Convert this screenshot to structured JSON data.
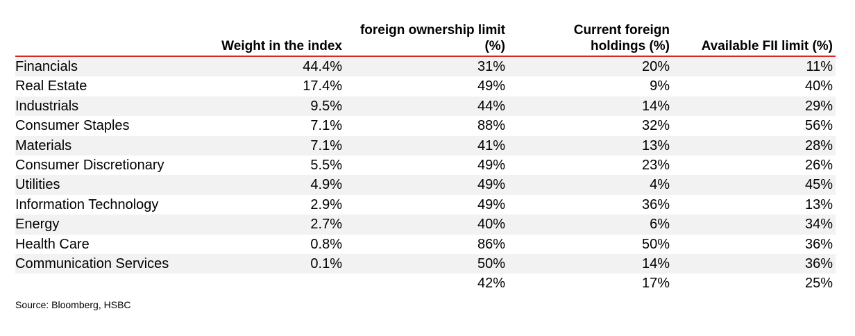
{
  "table": {
    "headers": {
      "weight": "Weight in the index",
      "fol_line1": "foreign ownership limit",
      "fol_line2": "(%)",
      "cfh_line1": "Current foreign",
      "cfh_line2": "holdings (%)",
      "fii": "Available FII limit (%)"
    },
    "rows": [
      {
        "sector": "Financials",
        "weight": "44.4%",
        "fol": "31%",
        "cfh": "20%",
        "fii": "11%"
      },
      {
        "sector": "Real Estate",
        "weight": "17.4%",
        "fol": "49%",
        "cfh": "9%",
        "fii": "40%"
      },
      {
        "sector": "Industrials",
        "weight": "9.5%",
        "fol": "44%",
        "cfh": "14%",
        "fii": "29%"
      },
      {
        "sector": "Consumer Staples",
        "weight": "7.1%",
        "fol": "88%",
        "cfh": "32%",
        "fii": "56%"
      },
      {
        "sector": "Materials",
        "weight": "7.1%",
        "fol": "41%",
        "cfh": "13%",
        "fii": "28%"
      },
      {
        "sector": "Consumer Discretionary",
        "weight": "5.5%",
        "fol": "49%",
        "cfh": "23%",
        "fii": "26%"
      },
      {
        "sector": "Utilities",
        "weight": "4.9%",
        "fol": "49%",
        "cfh": "4%",
        "fii": "45%"
      },
      {
        "sector": "Information Technology",
        "weight": "2.9%",
        "fol": "49%",
        "cfh": "36%",
        "fii": "13%"
      },
      {
        "sector": "Energy",
        "weight": "2.7%",
        "fol": "40%",
        "cfh": "6%",
        "fii": "34%"
      },
      {
        "sector": "Health Care",
        "weight": "0.8%",
        "fol": "86%",
        "cfh": "50%",
        "fii": "36%"
      },
      {
        "sector": "Communication Services",
        "weight": "0.1%",
        "fol": "50%",
        "cfh": "14%",
        "fii": "36%"
      }
    ],
    "total": {
      "sector": "",
      "weight": "",
      "fol": "42%",
      "cfh": "17%",
      "fii": "25%"
    }
  },
  "source": "Source: Bloomberg, HSBC",
  "colors": {
    "header_rule": "#d72727",
    "row_shade": "#f2f2f2"
  }
}
